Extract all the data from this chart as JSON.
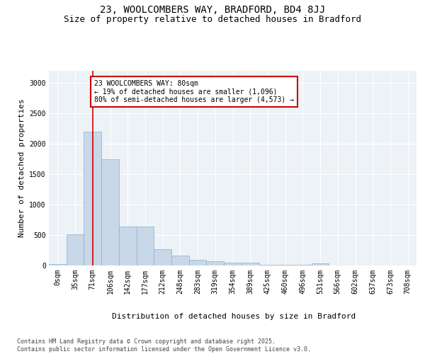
{
  "title_line1": "23, WOOLCOMBERS WAY, BRADFORD, BD4 8JJ",
  "title_line2": "Size of property relative to detached houses in Bradford",
  "xlabel": "Distribution of detached houses by size in Bradford",
  "ylabel": "Number of detached properties",
  "categories": [
    "0sqm",
    "35sqm",
    "71sqm",
    "106sqm",
    "142sqm",
    "177sqm",
    "212sqm",
    "248sqm",
    "283sqm",
    "319sqm",
    "354sqm",
    "389sqm",
    "425sqm",
    "460sqm",
    "496sqm",
    "531sqm",
    "566sqm",
    "602sqm",
    "637sqm",
    "673sqm",
    "708sqm"
  ],
  "values": [
    20,
    510,
    2200,
    1740,
    640,
    640,
    270,
    160,
    95,
    65,
    50,
    50,
    10,
    10,
    10,
    30,
    5,
    5,
    5,
    5,
    5
  ],
  "bar_color": "#c8d8e8",
  "bar_edge_color": "#8ab0cc",
  "vline_x": 2,
  "vline_color": "#cc0000",
  "annotation_text": "23 WOOLCOMBERS WAY: 80sqm\n← 19% of detached houses are smaller (1,096)\n80% of semi-detached houses are larger (4,573) →",
  "annotation_box_color": "#ffffff",
  "annotation_box_edgecolor": "#cc0000",
  "ylim": [
    0,
    3200
  ],
  "yticks": [
    0,
    500,
    1000,
    1500,
    2000,
    2500,
    3000
  ],
  "background_color": "#edf2f7",
  "grid_color": "#ffffff",
  "footer_text": "Contains HM Land Registry data © Crown copyright and database right 2025.\nContains public sector information licensed under the Open Government Licence v3.0.",
  "title_fontsize": 10,
  "subtitle_fontsize": 9,
  "axis_label_fontsize": 8,
  "tick_fontsize": 7,
  "annotation_fontsize": 7,
  "footer_fontsize": 6
}
